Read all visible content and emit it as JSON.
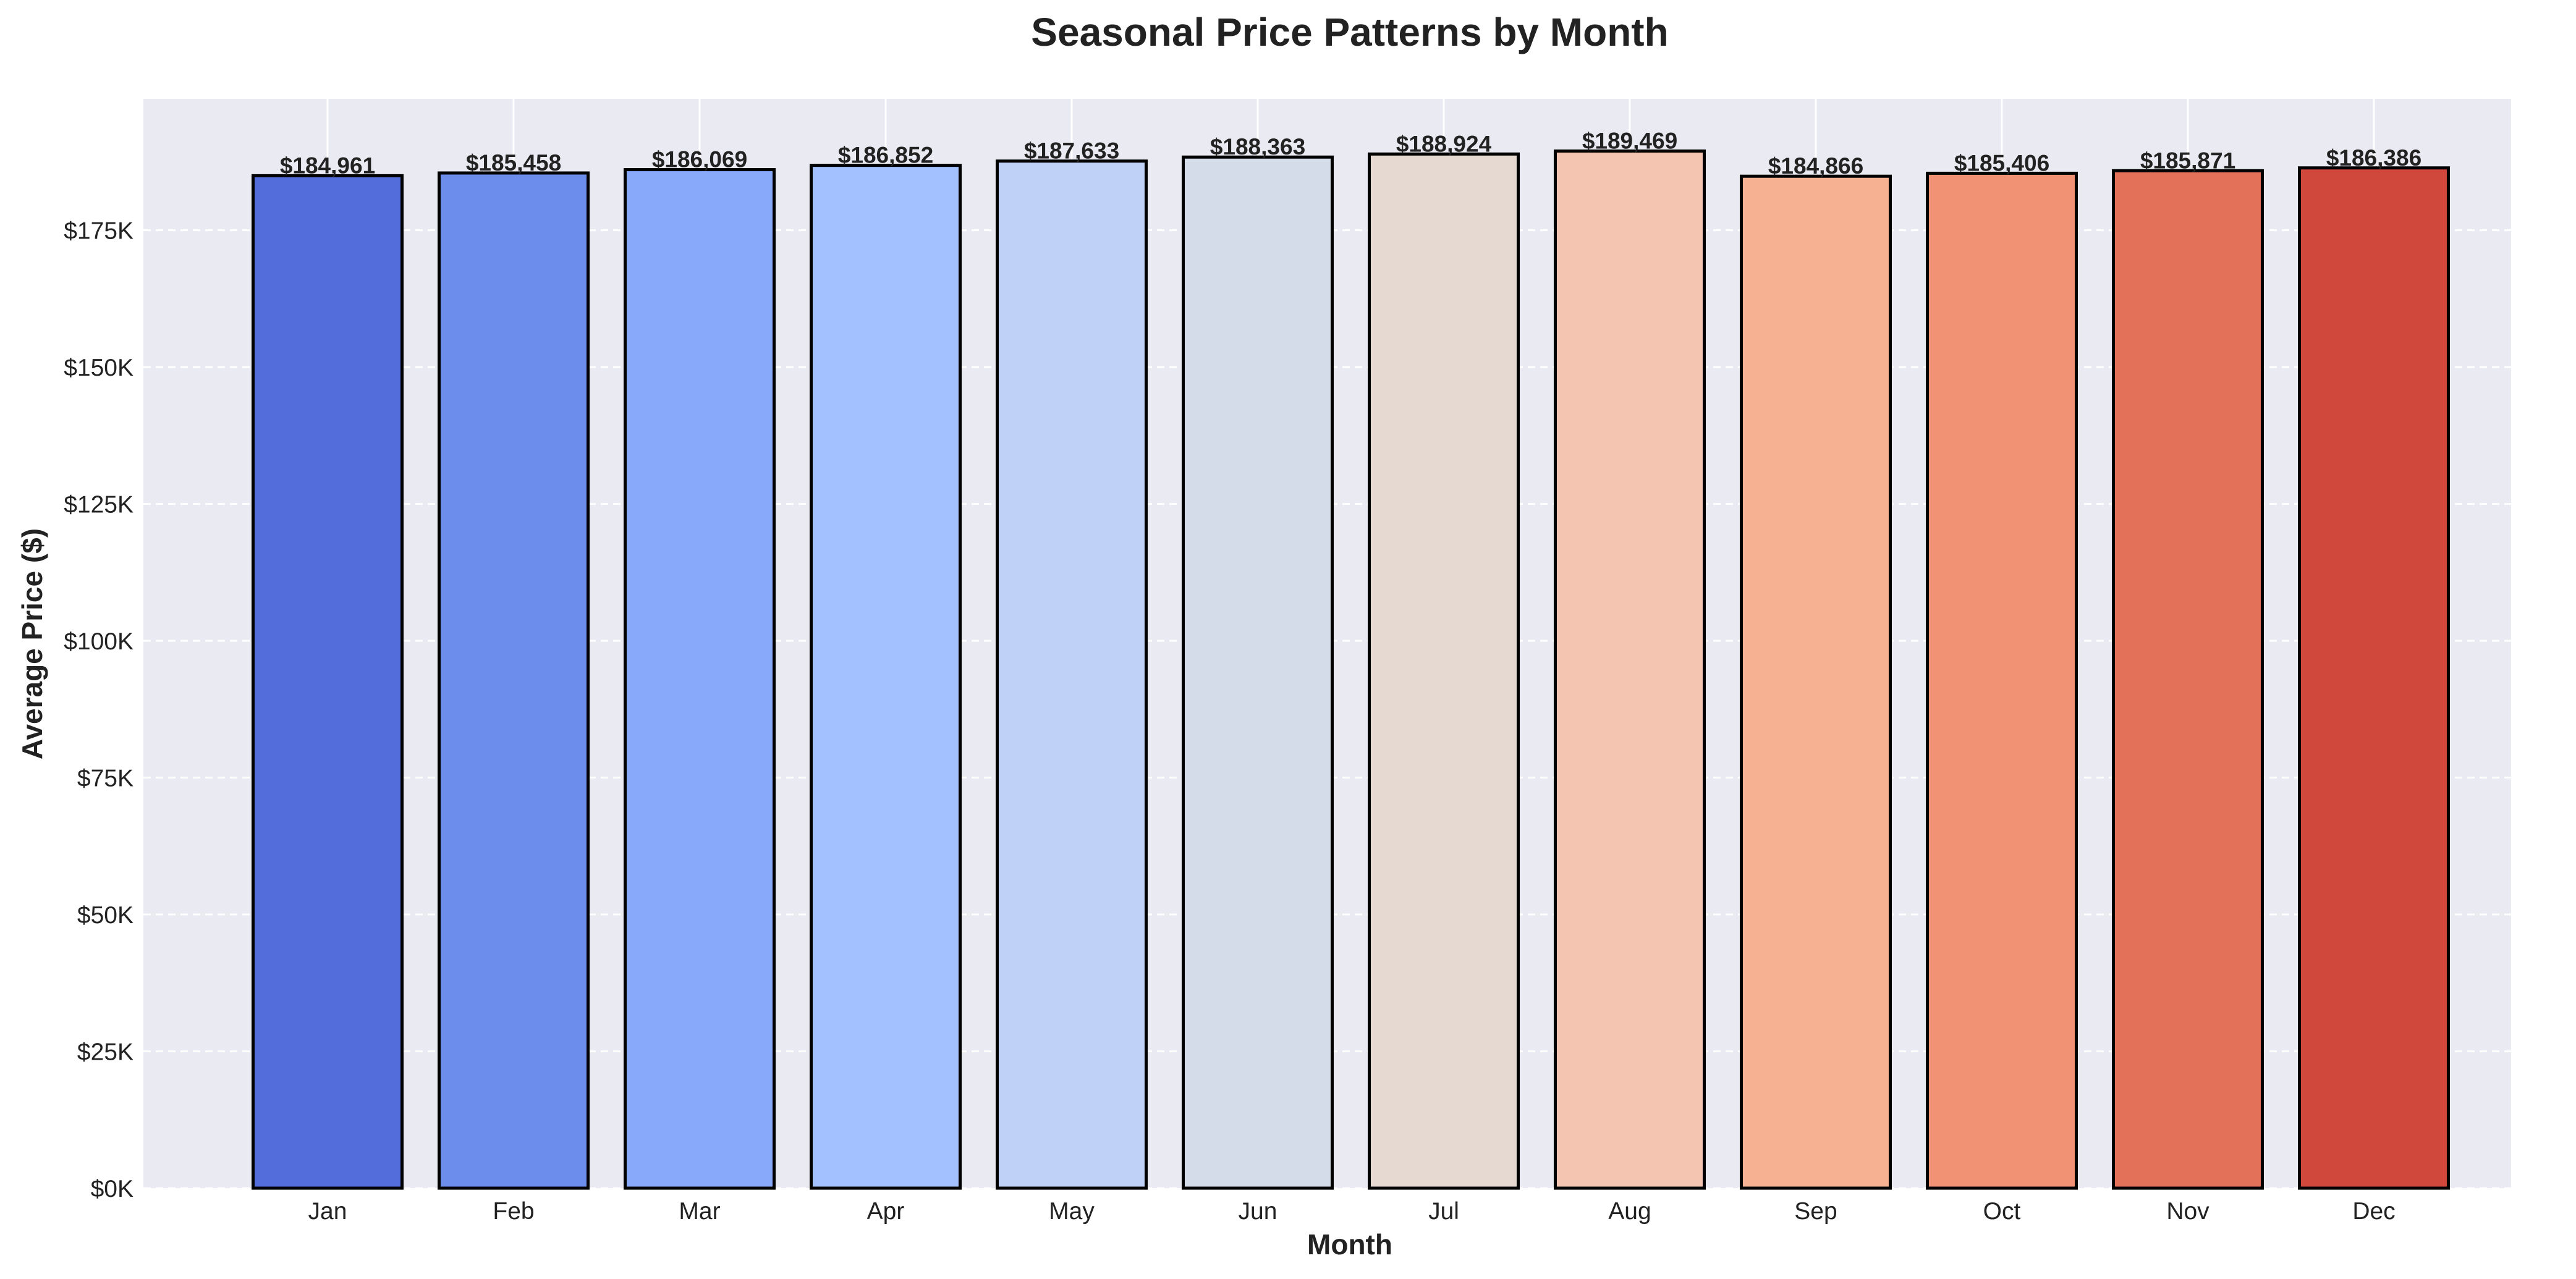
{
  "chart_data": {
    "type": "bar",
    "title": "Seasonal Price Patterns by Month",
    "xlabel": "Month",
    "ylabel": "Average Price ($)",
    "categories": [
      "Jan",
      "Feb",
      "Mar",
      "Apr",
      "May",
      "Jun",
      "Jul",
      "Aug",
      "Sep",
      "Oct",
      "Nov",
      "Dec"
    ],
    "values": [
      184961,
      185458,
      186069,
      186852,
      187633,
      188363,
      188924,
      189469,
      184866,
      185406,
      185871,
      186386
    ],
    "data_labels": [
      "$184,961",
      "$185,458",
      "$186,069",
      "$186,852",
      "$187,633",
      "$188,363",
      "$188,924",
      "$189,469",
      "$184,866",
      "$185,406",
      "$185,871",
      "$186,386"
    ],
    "bar_colors": [
      "#536ddb",
      "#6d8ded",
      "#88a9f9",
      "#a3c1fe",
      "#bfd1f7",
      "#d5dce9",
      "#e6d9d1",
      "#f4c6b1",
      "#f6b092",
      "#f09273",
      "#e37058",
      "#d0473c"
    ],
    "ylim": [
      0,
      199000
    ],
    "yticks": [
      0,
      25000,
      50000,
      75000,
      100000,
      125000,
      150000,
      175000
    ],
    "ytick_labels": [
      "$0K",
      "$25K",
      "$50K",
      "$75K",
      "$100K",
      "$125K",
      "$150K",
      "$175K"
    ],
    "grid": true,
    "background": "#eaeaf2"
  }
}
